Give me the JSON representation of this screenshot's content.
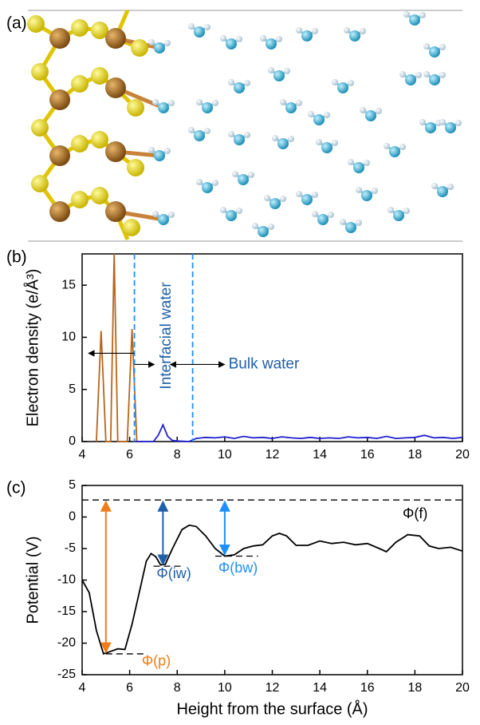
{
  "panel_labels": [
    "(a)",
    "(b)",
    "(c)"
  ],
  "chart_data": [
    {
      "type": "line",
      "ylabel": "Electron density (e/Å³)",
      "xlim": [
        4,
        20
      ],
      "xticks": [
        4,
        6,
        8,
        10,
        12,
        14,
        16,
        18,
        20
      ],
      "ylim": [
        0,
        18
      ],
      "yticks": [
        0,
        5,
        10,
        15
      ],
      "series": [
        {
          "color": "#b8651b",
          "x": [
            4.6,
            4.8,
            5.0,
            5.2,
            5.35,
            5.5,
            5.9,
            6.1,
            6.3
          ],
          "values": [
            0,
            10.6,
            0,
            0,
            18,
            0,
            0,
            10.8,
            0
          ]
        },
        {
          "color": "#1f1fd0",
          "x": [
            6.2,
            7.0,
            7.2,
            7.4,
            7.6,
            7.8,
            8.0,
            8.5,
            8.8,
            9.2,
            9.6,
            10.0,
            10.4,
            10.8,
            11.2,
            11.6,
            12.0,
            12.4,
            12.8,
            13.2,
            13.6,
            14.0,
            14.4,
            14.8,
            15.2,
            15.6,
            16.0,
            16.4,
            16.8,
            17.2,
            17.6,
            18.0,
            18.4,
            18.8,
            19.2,
            19.6,
            20.0
          ],
          "values": [
            0,
            0,
            0.6,
            1.6,
            0.5,
            0.1,
            0.05,
            0,
            0.3,
            0.4,
            0.35,
            0.45,
            0.3,
            0.5,
            0.35,
            0.4,
            0.3,
            0.45,
            0.35,
            0.3,
            0.4,
            0.3,
            0.35,
            0.3,
            0.45,
            0.35,
            0.4,
            0.3,
            0.5,
            0.3,
            0.35,
            0.4,
            0.6,
            0.35,
            0.4,
            0.3,
            0.4
          ]
        }
      ],
      "boundaries": {
        "values": [
          6.2,
          8.65
        ],
        "color": "#1e8fff"
      },
      "annotations": [
        {
          "text": "Interfacial water",
          "color": "#1f5fa8"
        },
        {
          "text": "Bulk water",
          "color": "#1f5fa8"
        }
      ]
    },
    {
      "type": "line",
      "xlabel": "Height from the surface (Å)",
      "ylabel": "Potential (V)",
      "xlim": [
        4,
        20
      ],
      "xticks": [
        4,
        6,
        8,
        10,
        12,
        14,
        16,
        18,
        20
      ],
      "ylim": [
        -25,
        5
      ],
      "yticks": [
        -25,
        -20,
        -15,
        -10,
        -5,
        0,
        5
      ],
      "series": [
        {
          "color": "#000000",
          "x": [
            4,
            4.3,
            4.6,
            4.9,
            5.2,
            5.5,
            5.8,
            6.1,
            6.4,
            6.7,
            6.9,
            7.1,
            7.3,
            7.5,
            7.8,
            8.2,
            8.5,
            8.8,
            9.2,
            9.6,
            10,
            10.4,
            10.8,
            11.2,
            11.6,
            12,
            12.3,
            12.6,
            13,
            13.5,
            14,
            14.5,
            15,
            15.5,
            16,
            16.5,
            16.8,
            17.2,
            17.7,
            18.2,
            18.6,
            19,
            19.5,
            20
          ],
          "values": [
            -10,
            -12,
            -18,
            -21.7,
            -21.3,
            -20.9,
            -21,
            -17,
            -12,
            -7,
            -5.8,
            -6.3,
            -7.6,
            -7.5,
            -5,
            -2,
            -1.3,
            -1.5,
            -3,
            -5,
            -6.2,
            -6,
            -5,
            -4.6,
            -4.4,
            -3,
            -2.6,
            -3,
            -4.5,
            -4.5,
            -3.8,
            -4.2,
            -4,
            -4.4,
            -4.2,
            -5,
            -5.5,
            -4,
            -2.8,
            -3,
            -4.6,
            -5,
            -4.8,
            -5.4
          ]
        }
      ],
      "levels": [
        {
          "label": "Φ(f)",
          "value": 2.7,
          "xrange": [
            4,
            20
          ],
          "color": "#000000"
        },
        {
          "label": "Φ(p)",
          "value": -21.7,
          "xrange": [
            5,
            6.6
          ],
          "arrow_x": 5,
          "color": "#f07c1a"
        },
        {
          "label": "Φ(iw)",
          "value": -7.8,
          "xrange": [
            7,
            8.2
          ],
          "arrow_x": 7.4,
          "color": "#1f5fa8"
        },
        {
          "label": "Φ(bw)",
          "value": -6.2,
          "xrange": [
            9.6,
            11.4
          ],
          "arrow_x": 10,
          "color": "#1e8fff"
        }
      ],
      "reference": 2.7
    }
  ]
}
